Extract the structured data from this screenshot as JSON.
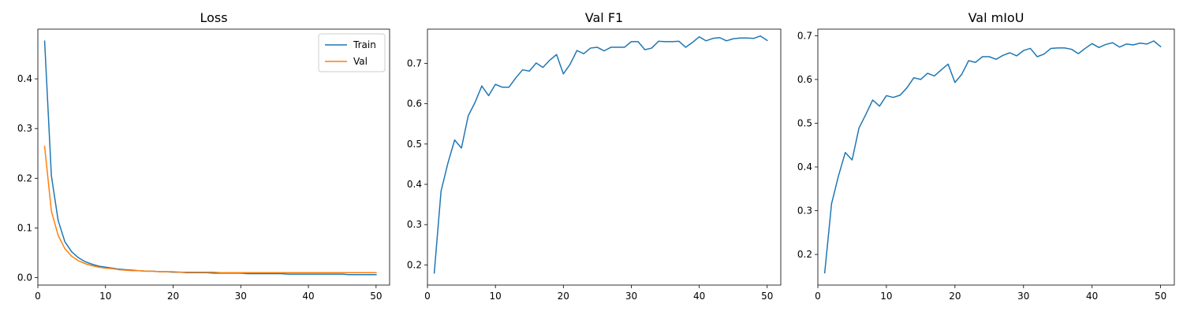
{
  "chart_data": [
    {
      "type": "line",
      "title": "Loss",
      "xlabel": "",
      "ylabel": "",
      "xlim": [
        0,
        52
      ],
      "ylim": [
        -0.015,
        0.5
      ],
      "xticks": [
        0,
        10,
        20,
        30,
        40,
        50
      ],
      "yticks": [
        0.0,
        0.1,
        0.2,
        0.3,
        0.4
      ],
      "legend": "top-right",
      "grid": false,
      "x": [
        1,
        2,
        3,
        4,
        5,
        6,
        7,
        8,
        9,
        10,
        11,
        12,
        13,
        14,
        15,
        16,
        17,
        18,
        19,
        20,
        21,
        22,
        23,
        24,
        25,
        26,
        27,
        28,
        29,
        30,
        31,
        32,
        33,
        34,
        35,
        36,
        37,
        38,
        39,
        40,
        41,
        42,
        43,
        44,
        45,
        46,
        47,
        48,
        49,
        50
      ],
      "series": [
        {
          "name": "Train",
          "color": "#1f77b4",
          "values": [
            0.476,
            0.205,
            0.115,
            0.072,
            0.052,
            0.04,
            0.032,
            0.027,
            0.023,
            0.021,
            0.019,
            0.017,
            0.016,
            0.015,
            0.014,
            0.013,
            0.013,
            0.012,
            0.012,
            0.011,
            0.011,
            0.01,
            0.01,
            0.01,
            0.01,
            0.009,
            0.009,
            0.009,
            0.009,
            0.009,
            0.008,
            0.008,
            0.008,
            0.008,
            0.008,
            0.008,
            0.007,
            0.007,
            0.007,
            0.007,
            0.007,
            0.007,
            0.007,
            0.007,
            0.007,
            0.006,
            0.006,
            0.006,
            0.006,
            0.006
          ]
        },
        {
          "name": "Val",
          "color": "#ff7f0e",
          "values": [
            0.264,
            0.134,
            0.085,
            0.058,
            0.043,
            0.034,
            0.028,
            0.024,
            0.021,
            0.019,
            0.018,
            0.016,
            0.015,
            0.014,
            0.014,
            0.013,
            0.013,
            0.012,
            0.012,
            0.012,
            0.011,
            0.011,
            0.011,
            0.011,
            0.011,
            0.011,
            0.01,
            0.01,
            0.01,
            0.01,
            0.01,
            0.01,
            0.01,
            0.01,
            0.01,
            0.01,
            0.01,
            0.01,
            0.01,
            0.01,
            0.01,
            0.01,
            0.01,
            0.01,
            0.01,
            0.01,
            0.01,
            0.01,
            0.01,
            0.01
          ]
        }
      ]
    },
    {
      "type": "line",
      "title": "Val F1",
      "xlabel": "",
      "ylabel": "",
      "xlim": [
        0,
        52
      ],
      "ylim": [
        0.15,
        0.785
      ],
      "xticks": [
        0,
        10,
        20,
        30,
        40,
        50
      ],
      "yticks": [
        0.2,
        0.3,
        0.4,
        0.5,
        0.6,
        0.7
      ],
      "legend": "none",
      "grid": false,
      "x": [
        1,
        2,
        3,
        4,
        5,
        6,
        7,
        8,
        9,
        10,
        11,
        12,
        13,
        14,
        15,
        16,
        17,
        18,
        19,
        20,
        21,
        22,
        23,
        24,
        25,
        26,
        27,
        28,
        29,
        30,
        31,
        32,
        33,
        34,
        35,
        36,
        37,
        38,
        39,
        40,
        41,
        42,
        43,
        44,
        45,
        46,
        47,
        48,
        49,
        50
      ],
      "series": [
        {
          "name": "",
          "color": "#1f77b4",
          "values": [
            0.18,
            0.383,
            0.452,
            0.51,
            0.49,
            0.57,
            0.603,
            0.644,
            0.62,
            0.648,
            0.641,
            0.641,
            0.664,
            0.684,
            0.681,
            0.701,
            0.69,
            0.708,
            0.722,
            0.674,
            0.698,
            0.732,
            0.724,
            0.738,
            0.74,
            0.731,
            0.74,
            0.74,
            0.74,
            0.754,
            0.754,
            0.734,
            0.738,
            0.755,
            0.754,
            0.754,
            0.755,
            0.74,
            0.752,
            0.766,
            0.756,
            0.762,
            0.764,
            0.756,
            0.761,
            0.763,
            0.763,
            0.762,
            0.768,
            0.757
          ]
        }
      ]
    },
    {
      "type": "line",
      "title": "Val mIoU",
      "xlabel": "",
      "ylabel": "",
      "xlim": [
        0,
        52
      ],
      "ylim": [
        0.13,
        0.715
      ],
      "xticks": [
        0,
        10,
        20,
        30,
        40,
        50
      ],
      "yticks": [
        0.2,
        0.3,
        0.4,
        0.5,
        0.6,
        0.7
      ],
      "legend": "none",
      "grid": false,
      "x": [
        1,
        2,
        3,
        4,
        5,
        6,
        7,
        8,
        9,
        10,
        11,
        12,
        13,
        14,
        15,
        16,
        17,
        18,
        19,
        20,
        21,
        22,
        23,
        24,
        25,
        26,
        27,
        28,
        29,
        30,
        31,
        32,
        33,
        34,
        35,
        36,
        37,
        38,
        39,
        40,
        41,
        42,
        43,
        44,
        45,
        46,
        47,
        48,
        49,
        50
      ],
      "series": [
        {
          "name": "",
          "color": "#1f77b4",
          "values": [
            0.158,
            0.316,
            0.379,
            0.433,
            0.416,
            0.489,
            0.52,
            0.553,
            0.539,
            0.563,
            0.559,
            0.564,
            0.581,
            0.604,
            0.6,
            0.614,
            0.608,
            0.622,
            0.635,
            0.593,
            0.612,
            0.643,
            0.639,
            0.652,
            0.652,
            0.646,
            0.655,
            0.661,
            0.654,
            0.666,
            0.671,
            0.652,
            0.658,
            0.671,
            0.672,
            0.672,
            0.669,
            0.659,
            0.671,
            0.682,
            0.673,
            0.68,
            0.684,
            0.674,
            0.681,
            0.679,
            0.683,
            0.681,
            0.688,
            0.675
          ]
        }
      ]
    }
  ]
}
